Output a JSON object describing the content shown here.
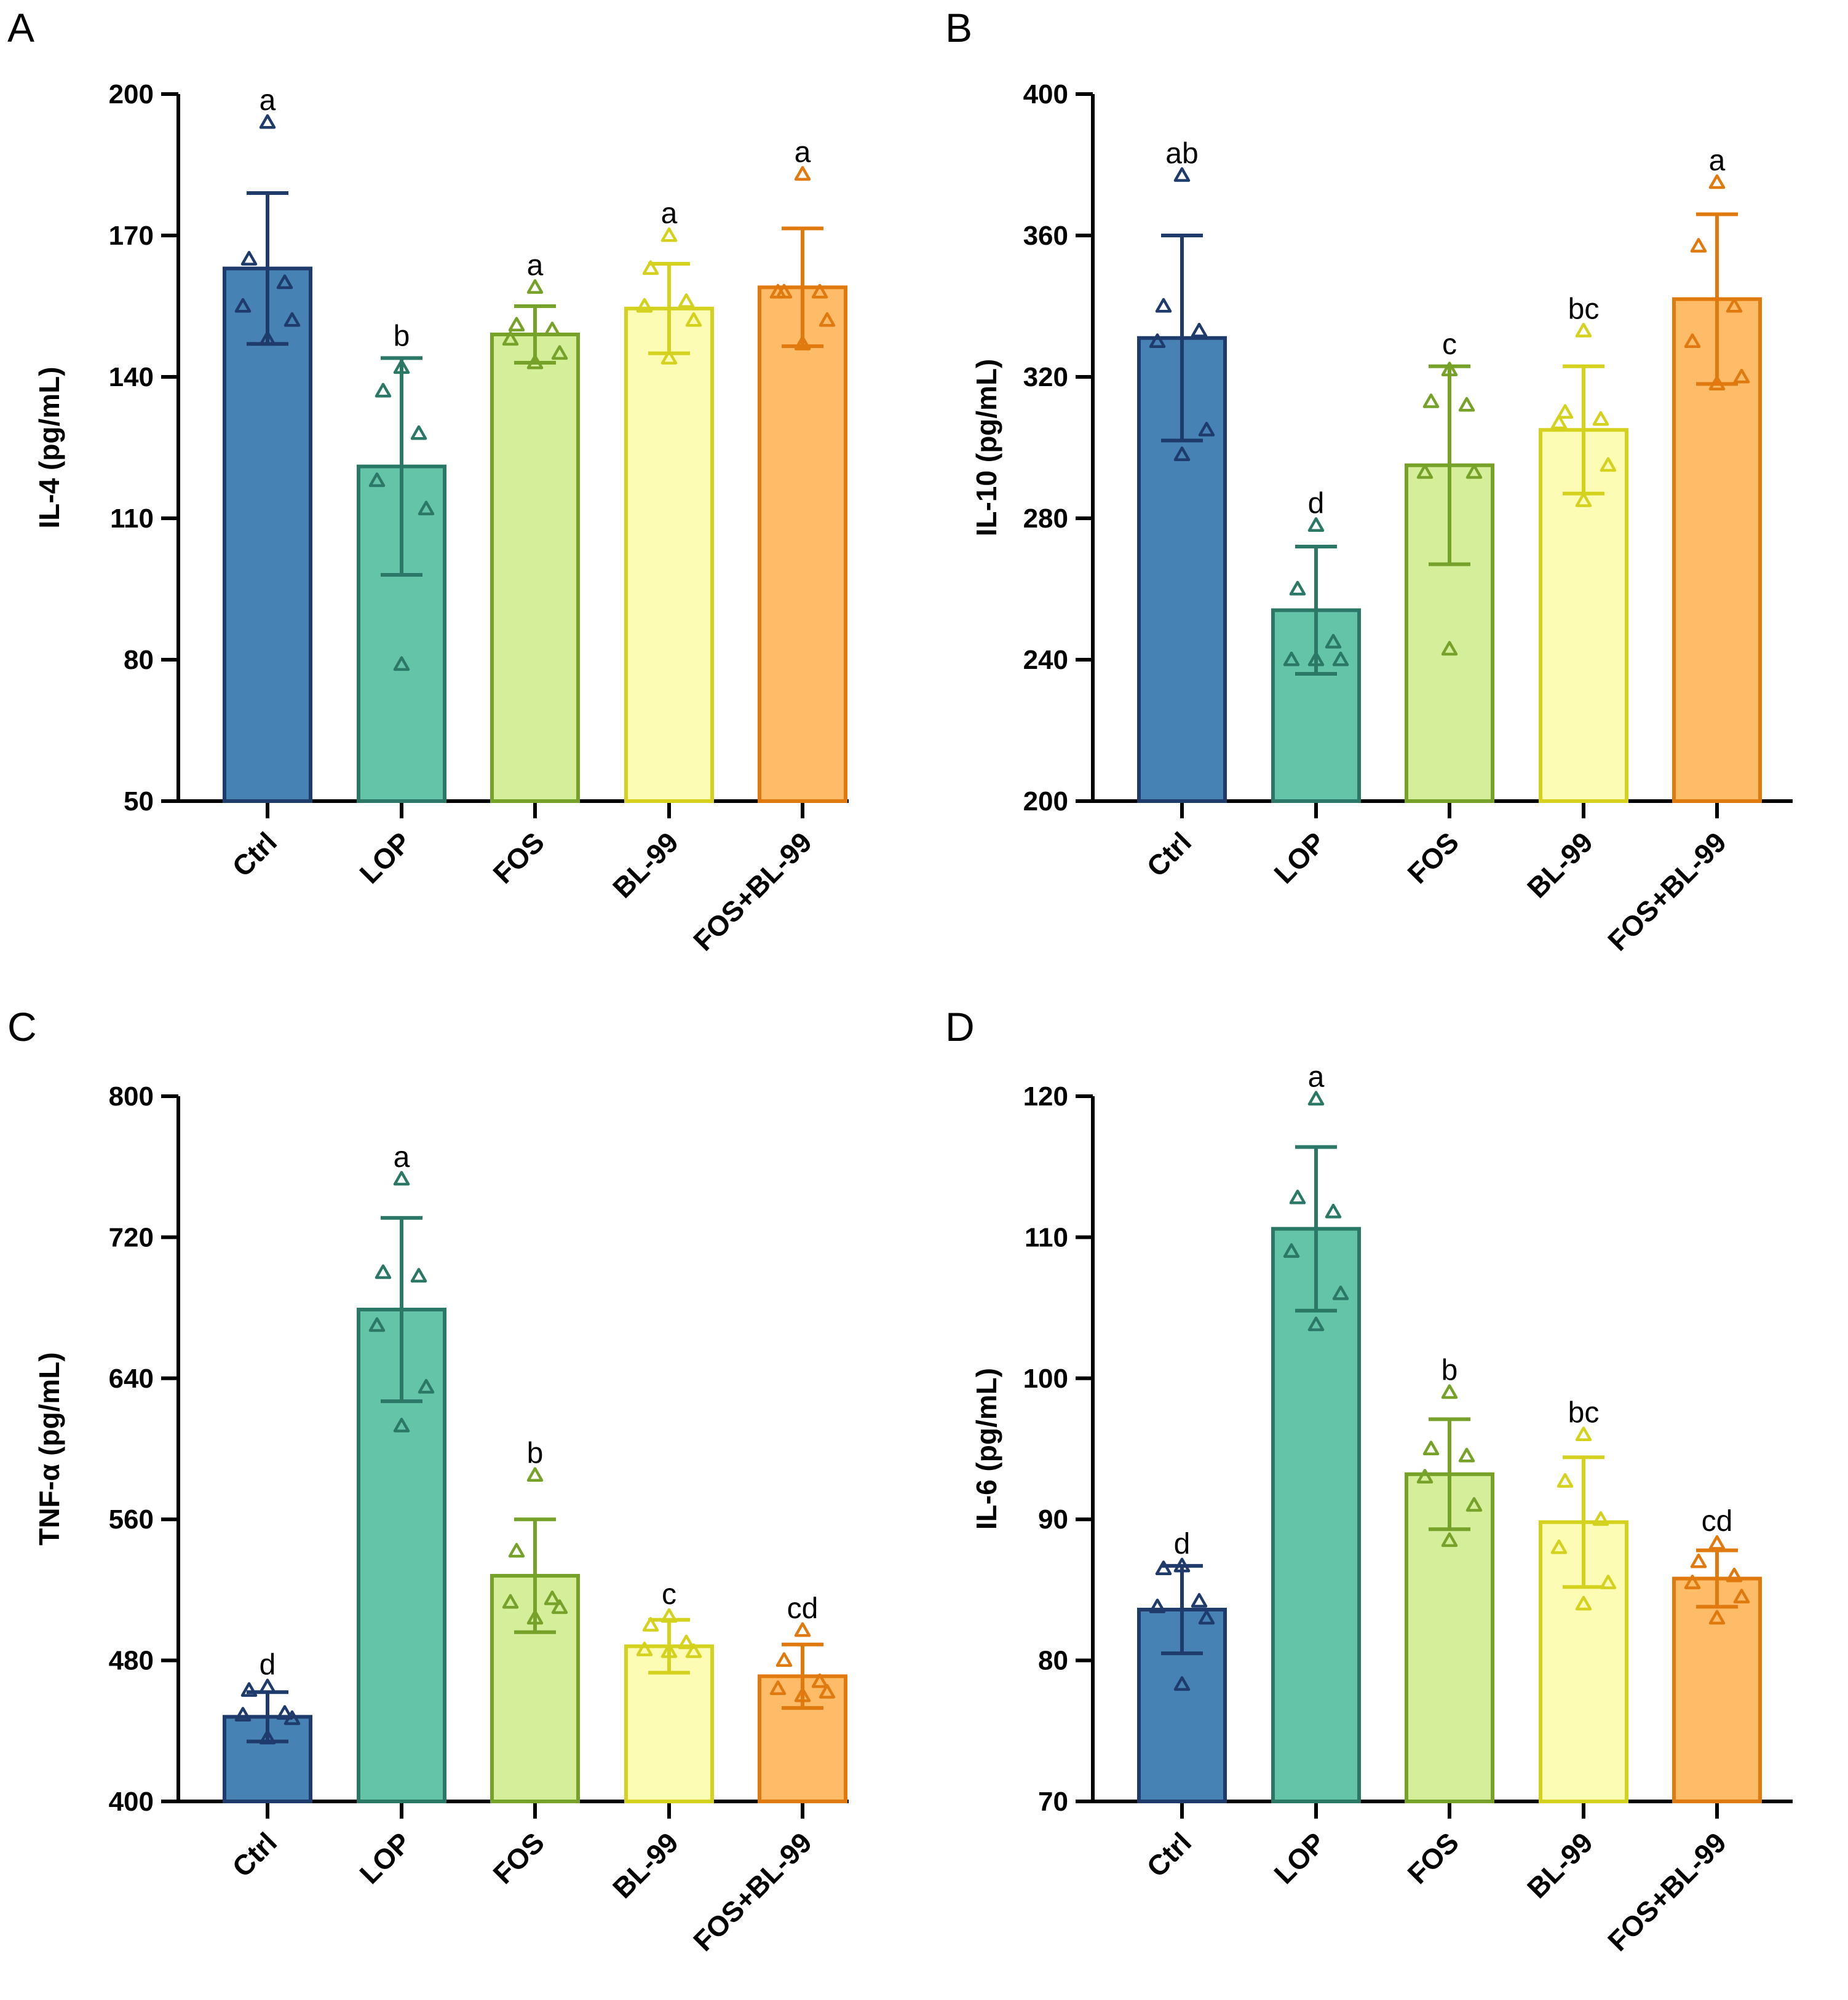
{
  "figure": {
    "colors": {
      "Ctrl": {
        "fill": "#4682b4",
        "stroke": "#1f3b6b"
      },
      "LOP": {
        "fill": "#63c4a8",
        "stroke": "#2c7866"
      },
      "FOS": {
        "fill": "#d4ee9a",
        "stroke": "#77a22a"
      },
      "BL-99": {
        "fill": "#fcfcb4",
        "stroke": "#d4d21e"
      },
      "FOS+BL-99": {
        "fill": "#ffbc68",
        "stroke": "#e17a0e"
      }
    }
  },
  "chart_data": [
    {
      "panel": "A",
      "type": "bar",
      "ylabel": "IL-4 (pg/mL)",
      "ylim": [
        50,
        200
      ],
      "yticks": [
        50,
        80,
        110,
        140,
        170,
        200
      ],
      "categories": [
        "Ctrl",
        "LOP",
        "FOS",
        "BL-99",
        "FOS+BL-99"
      ],
      "values": [
        163,
        121,
        149,
        154.5,
        159
      ],
      "sd": [
        16,
        23,
        6,
        9.5,
        12.5
      ],
      "letters": [
        "a",
        "b",
        "a",
        "a",
        "a"
      ],
      "points": [
        [
          194,
          165,
          160,
          155,
          152,
          148
        ],
        [
          142,
          137,
          128,
          118,
          112,
          79
        ],
        [
          159,
          151,
          150,
          148,
          145,
          143
        ],
        [
          170,
          163,
          156,
          155,
          152,
          144
        ],
        [
          183,
          158,
          158,
          158,
          152,
          147
        ]
      ]
    },
    {
      "panel": "B",
      "type": "bar",
      "ylabel": "IL-10 (pg/mL)",
      "ylim": [
        200,
        400
      ],
      "yticks": [
        200,
        240,
        280,
        320,
        360,
        400
      ],
      "categories": [
        "Ctrl",
        "LOP",
        "FOS",
        "BL-99",
        "FOS+BL-99"
      ],
      "values": [
        331,
        254,
        295,
        305,
        342
      ],
      "sd": [
        29,
        18,
        28,
        18,
        24
      ],
      "letters": [
        "ab",
        "d",
        "c",
        "bc",
        "a"
      ],
      "points": [
        [
          377,
          340,
          333,
          330,
          305,
          298
        ],
        [
          278,
          260,
          245,
          240,
          240,
          240
        ],
        [
          322,
          313,
          312,
          293,
          293,
          243
        ],
        [
          333,
          310,
          308,
          307,
          295,
          285
        ],
        [
          375,
          357,
          340,
          330,
          320,
          318
        ]
      ]
    },
    {
      "panel": "C",
      "type": "bar",
      "ylabel": "TNF-α (pg/mL)",
      "ylim": [
        400,
        800
      ],
      "yticks": [
        400,
        480,
        560,
        640,
        720,
        800
      ],
      "categories": [
        "Ctrl",
        "LOP",
        "FOS",
        "BL-99",
        "FOS+BL-99"
      ],
      "values": [
        448,
        679,
        528,
        488,
        471
      ],
      "sd": [
        14,
        52,
        32,
        15,
        18
      ],
      "letters": [
        "d",
        "a",
        "b",
        "c",
        "cd"
      ],
      "points": [
        [
          465,
          463,
          450,
          449,
          447,
          436
        ],
        [
          753,
          700,
          698,
          670,
          635,
          613
        ],
        [
          585,
          542,
          515,
          513,
          510,
          504
        ],
        [
          505,
          500,
          490,
          486,
          485,
          485
        ],
        [
          497,
          480,
          468,
          464,
          462,
          460
        ]
      ]
    },
    {
      "panel": "D",
      "type": "bar",
      "ylabel": "IL-6 (pg/mL)",
      "ylim": [
        70,
        120
      ],
      "yticks": [
        70,
        80,
        90,
        100,
        110,
        120
      ],
      "categories": [
        "Ctrl",
        "LOP",
        "FOS",
        "BL-99",
        "FOS+BL-99"
      ],
      "values": [
        83.6,
        110.6,
        93.2,
        89.8,
        85.8
      ],
      "sd": [
        3.1,
        5.8,
        3.9,
        4.6,
        2.0
      ],
      "letters": [
        "d",
        "a",
        "b",
        "bc",
        "cd"
      ],
      "points": [
        [
          86.7,
          86.5,
          84.2,
          83.8,
          83.0,
          78.3
        ],
        [
          119.8,
          112.8,
          111.8,
          109.0,
          106.0,
          103.8
        ],
        [
          99.0,
          95.0,
          94.5,
          93.0,
          91.0,
          88.5
        ],
        [
          96.0,
          92.7,
          90.0,
          88.0,
          85.5,
          84.0
        ],
        [
          88.3,
          87.0,
          86.0,
          85.5,
          84.5,
          83.0
        ]
      ]
    }
  ]
}
